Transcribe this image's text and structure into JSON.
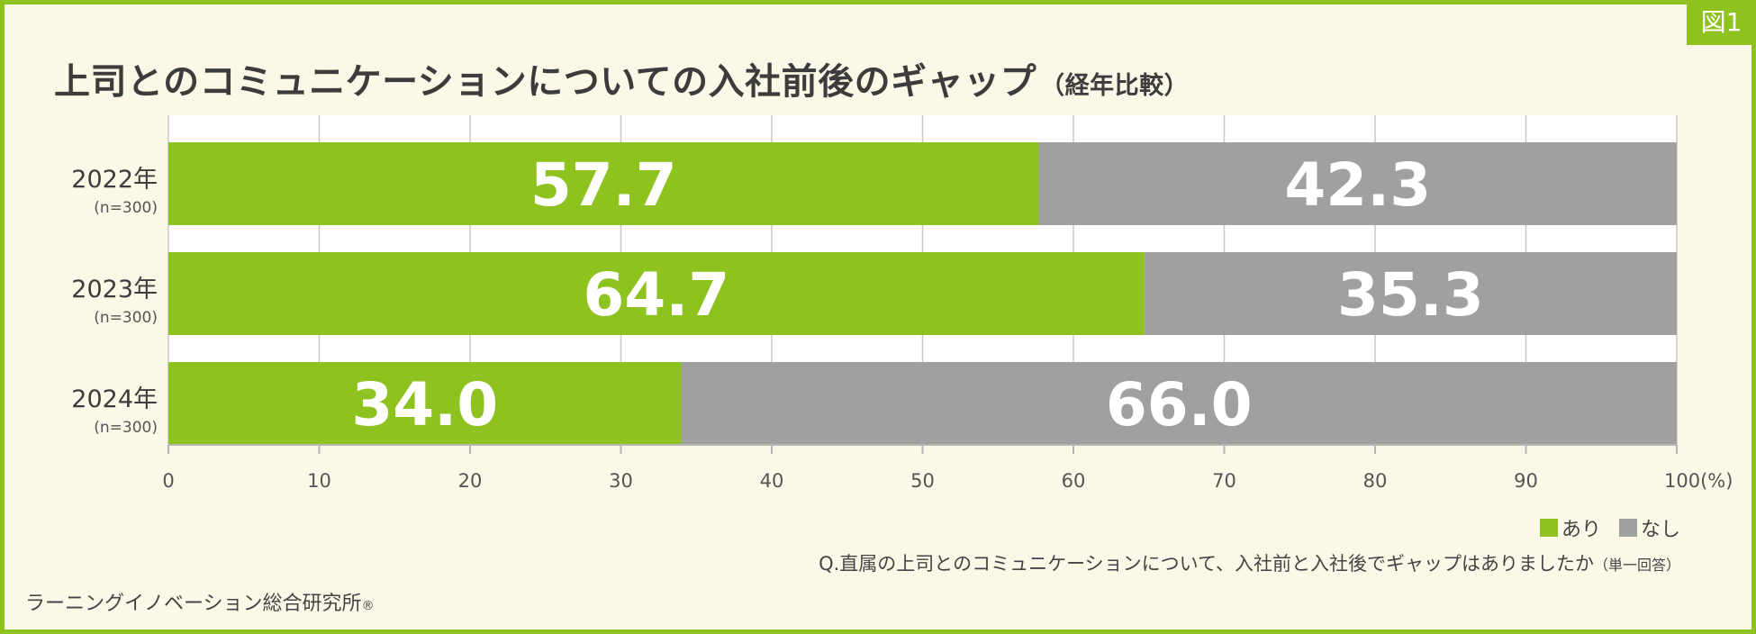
{
  "badge": "図1",
  "title": "上司とのコミュニケーションについての入社前後のギャップ",
  "subtitle": "（経年比較）",
  "chart_data": {
    "type": "bar",
    "orientation": "horizontal-stacked-100",
    "categories": [
      "2022年",
      "2023年",
      "2024年"
    ],
    "category_notes": [
      "(n=300)",
      "(n=300)",
      "(n=300)"
    ],
    "series": [
      {
        "name": "あり",
        "color": "#8dc21f",
        "values": [
          57.7,
          64.7,
          34.0
        ]
      },
      {
        "name": "なし",
        "color": "#9fa0a0",
        "values": [
          42.3,
          35.3,
          66.0
        ]
      }
    ],
    "value_labels": [
      [
        "57.7",
        "64.7",
        "34.0"
      ],
      [
        "42.3",
        "35.3",
        "66.0"
      ]
    ],
    "xlim": [
      0,
      100
    ],
    "xticks": [
      "0",
      "10",
      "20",
      "30",
      "40",
      "50",
      "60",
      "70",
      "80",
      "90",
      "100(%)"
    ],
    "grid": true,
    "legend": "bottom-right"
  },
  "question": "Q.直属の上司とのコミュニケーションについて、入社前と入社後でギャップはありましたか",
  "question_note": "（単一回答）",
  "source": "ラーニングイノベーション総合研究所",
  "source_mark": "®"
}
